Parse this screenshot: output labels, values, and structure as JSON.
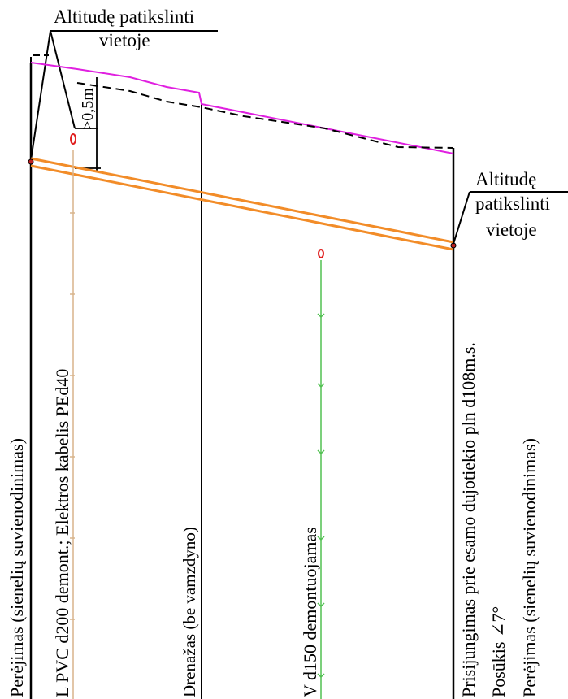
{
  "callouts": {
    "top_left": {
      "line1": "Altitudę patikslinti",
      "line2": "vietoje"
    },
    "right": {
      "line1": "Altitudę",
      "line2": "patikslinti",
      "line3": "vietoje"
    },
    "clearance": ">0,5m"
  },
  "vertical_labels": {
    "left_crossing": "Perėjimas (sienelių suvienodinimas)",
    "pipes_partial": "L  PVC d200 demont.;   Elektros kabelis  PEd40",
    "drainage_partial": "Drenažas (be vamzdyno)",
    "water_partial": "V  d150 demontuojamas",
    "connection": "Prisijungimas prie esamo dujotiekio pln d108m.s.",
    "turn": "Posūkis ∠7°",
    "right_crossing": "Perėjimas (sienelių suvienodinimas)"
  },
  "colors": {
    "pipe_orange": "#f28c28",
    "terrain_magenta": "#e020e0",
    "utility_red": "#e02020",
    "cable_tan": "#d8b48c",
    "water_green": "#50c050",
    "ink": "#000000"
  }
}
